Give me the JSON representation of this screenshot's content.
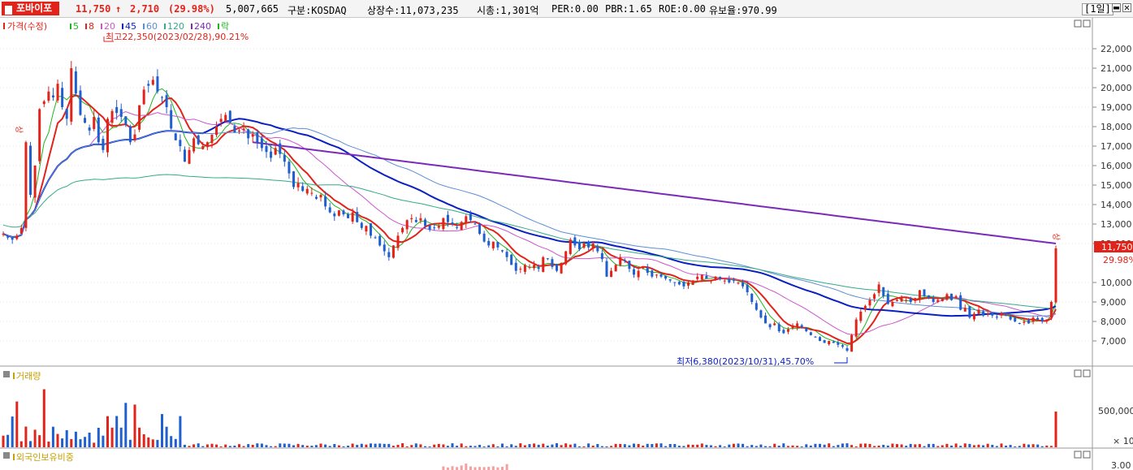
{
  "header": {
    "stock_name": "포바이포",
    "price": "11,750",
    "change_arrow": "↑",
    "change": "2,710",
    "change_pct": "(29.98%)",
    "volume": "5,007,665",
    "market": "구분:KOSDAQ",
    "shares": "상장수:11,073,235",
    "market_cap": "시총:1,301억",
    "per": "PER:0.00",
    "pbr": "PBR:1.65",
    "roe": "ROE:0.00",
    "float": "유보율:970.99",
    "period": "[1일]"
  },
  "price_panel": {
    "legend_title": "가격(수정)",
    "legend_items": [
      {
        "label": "5",
        "color": "#1fb51f"
      },
      {
        "label": "8",
        "color": "#e2231a"
      },
      {
        "label": "20",
        "color": "#cc55cc"
      },
      {
        "label": "45",
        "color": "#0b1fc2"
      },
      {
        "label": "60",
        "color": "#5a8ed8"
      },
      {
        "label": "120",
        "color": "#33aa88"
      },
      {
        "label": "240",
        "color": "#7a2bb8"
      },
      {
        "label": "락",
        "color": "#1fb51f"
      }
    ],
    "high_annotation": "최고22,350(2023/02/28),90.21%",
    "low_annotation": "최저6,380(2023/10/31),45.70%",
    "limit_up_marker": "상",
    "current_price_tag": "11,750",
    "current_pct_tag": "29.98%",
    "y_ticks": [
      "22,000",
      "21,000",
      "20,000",
      "19,000",
      "18,000",
      "17,000",
      "16,000",
      "15,000",
      "14,000",
      "13,000",
      "12,000",
      "10,000",
      "9,000",
      "8,000",
      "7,000"
    ]
  },
  "volume_panel": {
    "title": "거래량",
    "y_ticks": [
      "500,000"
    ],
    "unit": "× 10"
  },
  "foreign_panel": {
    "title": "외국인보유비중",
    "y_ticks": [
      "3.00"
    ]
  },
  "chart_data": {
    "type": "candlestick",
    "symbol": "포바이포",
    "price_range": [
      6380,
      22350
    ],
    "high": {
      "value": 22350,
      "date": "2023/02/28",
      "pct": 90.21
    },
    "low": {
      "value": 6380,
      "date": "2023/10/31",
      "pct": 45.7
    },
    "close": [
      12500,
      12300,
      12200,
      12400,
      12800,
      17200,
      14500,
      16000,
      18900,
      19300,
      19800,
      19500,
      20200,
      19000,
      18400,
      21000,
      19700,
      18600,
      18200,
      17800,
      18500,
      17200,
      16800,
      18400,
      18800,
      18700,
      18500,
      18100,
      17200,
      17600,
      19100,
      19900,
      20100,
      20400,
      19800,
      19500,
      19000,
      17900,
      17300,
      17000,
      16200,
      16800,
      17400,
      17100,
      17000,
      17200,
      17600,
      18000,
      18400,
      18600,
      18200,
      17700,
      17800,
      17900,
      17400,
      17600,
      17200,
      16900,
      16700,
      16400,
      16900,
      16600,
      16200,
      15600,
      14900,
      15100,
      14700,
      14800,
      14600,
      14300,
      14500,
      13900,
      13600,
      13400,
      13700,
      13500,
      13300,
      13600,
      13100,
      12800,
      12900,
      12400,
      12300,
      11900,
      11600,
      11300,
      11900,
      12400,
      12800,
      13200,
      13300,
      13100,
      13300,
      12900,
      12700,
      12800,
      12900,
      13300,
      13100,
      13000,
      12800,
      13100,
      13400,
      13200,
      13000,
      12500,
      12100,
      11900,
      12100,
      11800,
      11600,
      11300,
      10900,
      10600,
      10700,
      10900,
      10800,
      10900,
      10700,
      11300,
      11200,
      10800,
      10600,
      11000,
      11600,
      12200,
      11900,
      11700,
      12000,
      11800,
      12000,
      11600,
      11200,
      10300,
      10600,
      10900,
      11300,
      11100,
      10700,
      10400,
      10600,
      10800,
      10500,
      10300,
      10400,
      10300,
      10200,
      10100,
      10000,
      9900,
      9800,
      10000,
      10100,
      10300,
      10400,
      10200,
      10100,
      10300,
      10200,
      10100,
      10000,
      10100,
      10000,
      9800,
      9500,
      9000,
      8600,
      8200,
      7900,
      7700,
      7900,
      7500,
      7400,
      7600,
      7800,
      7900,
      7700,
      7500,
      7300,
      7200,
      7000,
      6900,
      7000,
      6900,
      6800,
      6700,
      6500,
      7300,
      8100,
      8500,
      8800,
      9100,
      9400,
      9900,
      9300,
      8900,
      9000,
      9100,
      9200,
      9100,
      9000,
      9200,
      9600,
      9300,
      9200,
      9000,
      9100,
      9200,
      9400,
      9100,
      9300,
      8600,
      8700,
      8200,
      8400,
      8600,
      8300,
      8400,
      8300,
      8200,
      8400,
      8300,
      8100,
      8000,
      7900,
      8000,
      7900,
      8200,
      8100,
      8000,
      8100,
      9000,
      11750
    ],
    "ma": [
      {
        "name": "5",
        "color": "#1fb51f"
      },
      {
        "name": "8",
        "color": "#e2231a"
      },
      {
        "name": "20",
        "color": "#cc55cc"
      },
      {
        "name": "45",
        "color": "#0b1fc2"
      },
      {
        "name": "60",
        "color": "#5a8ed8"
      },
      {
        "name": "120",
        "color": "#33aa88"
      },
      {
        "name": "240",
        "color": "#7a2bb8"
      }
    ],
    "volume_last": 5007665
  }
}
